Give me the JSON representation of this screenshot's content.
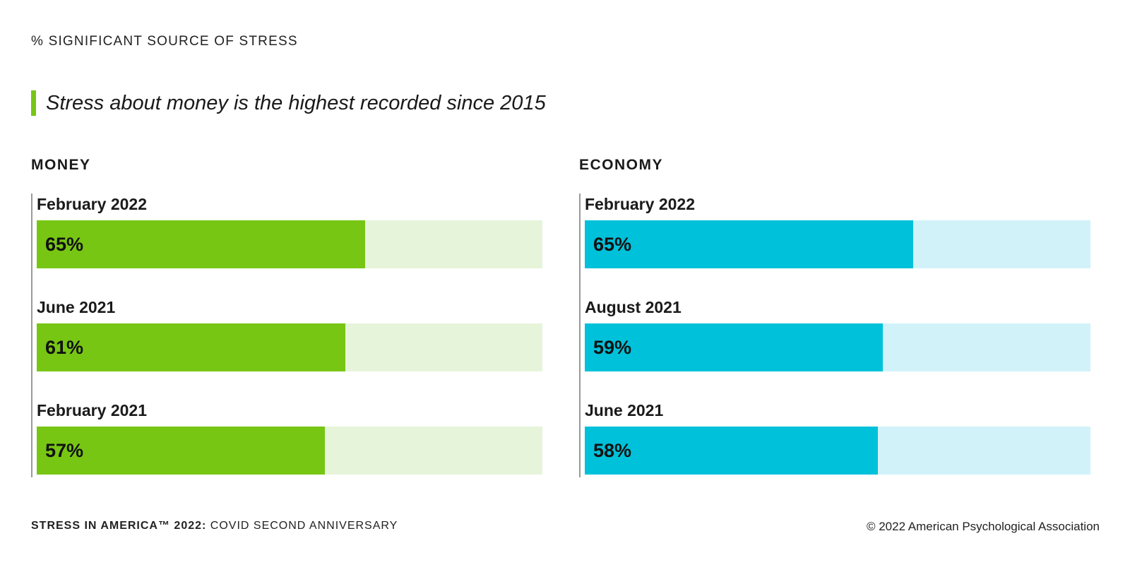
{
  "eyebrow": "% SIGNIFICANT SOURCE OF STRESS",
  "headline": "Stress about money is the highest recorded since 2015",
  "colors": {
    "accent": "#77c614",
    "money_fill": "#77c614",
    "money_track": "#e6f4da",
    "economy_fill": "#00c1da",
    "economy_track": "#d1f2f8"
  },
  "chart_data": [
    {
      "type": "bar",
      "orientation": "horizontal",
      "title": "MONEY",
      "categories": [
        "February 2022",
        "June 2021",
        "February 2021"
      ],
      "values": [
        65,
        61,
        57
      ],
      "labels": [
        "65%",
        "61%",
        "57%"
      ],
      "xlim": [
        0,
        100
      ],
      "grid": false
    },
    {
      "type": "bar",
      "orientation": "horizontal",
      "title": "ECONOMY",
      "categories": [
        "February 2022",
        "August 2021",
        "June 2021"
      ],
      "values": [
        65,
        59,
        58
      ],
      "labels": [
        "65%",
        "59%",
        "58%"
      ],
      "xlim": [
        0,
        100
      ],
      "grid": false
    }
  ],
  "footer": {
    "series_name": "STRESS IN AMERICA™ 2022:",
    "series_subtitle": " COVID SECOND ANNIVERSARY",
    "copyright": "© 2022 American Psychological Association"
  }
}
